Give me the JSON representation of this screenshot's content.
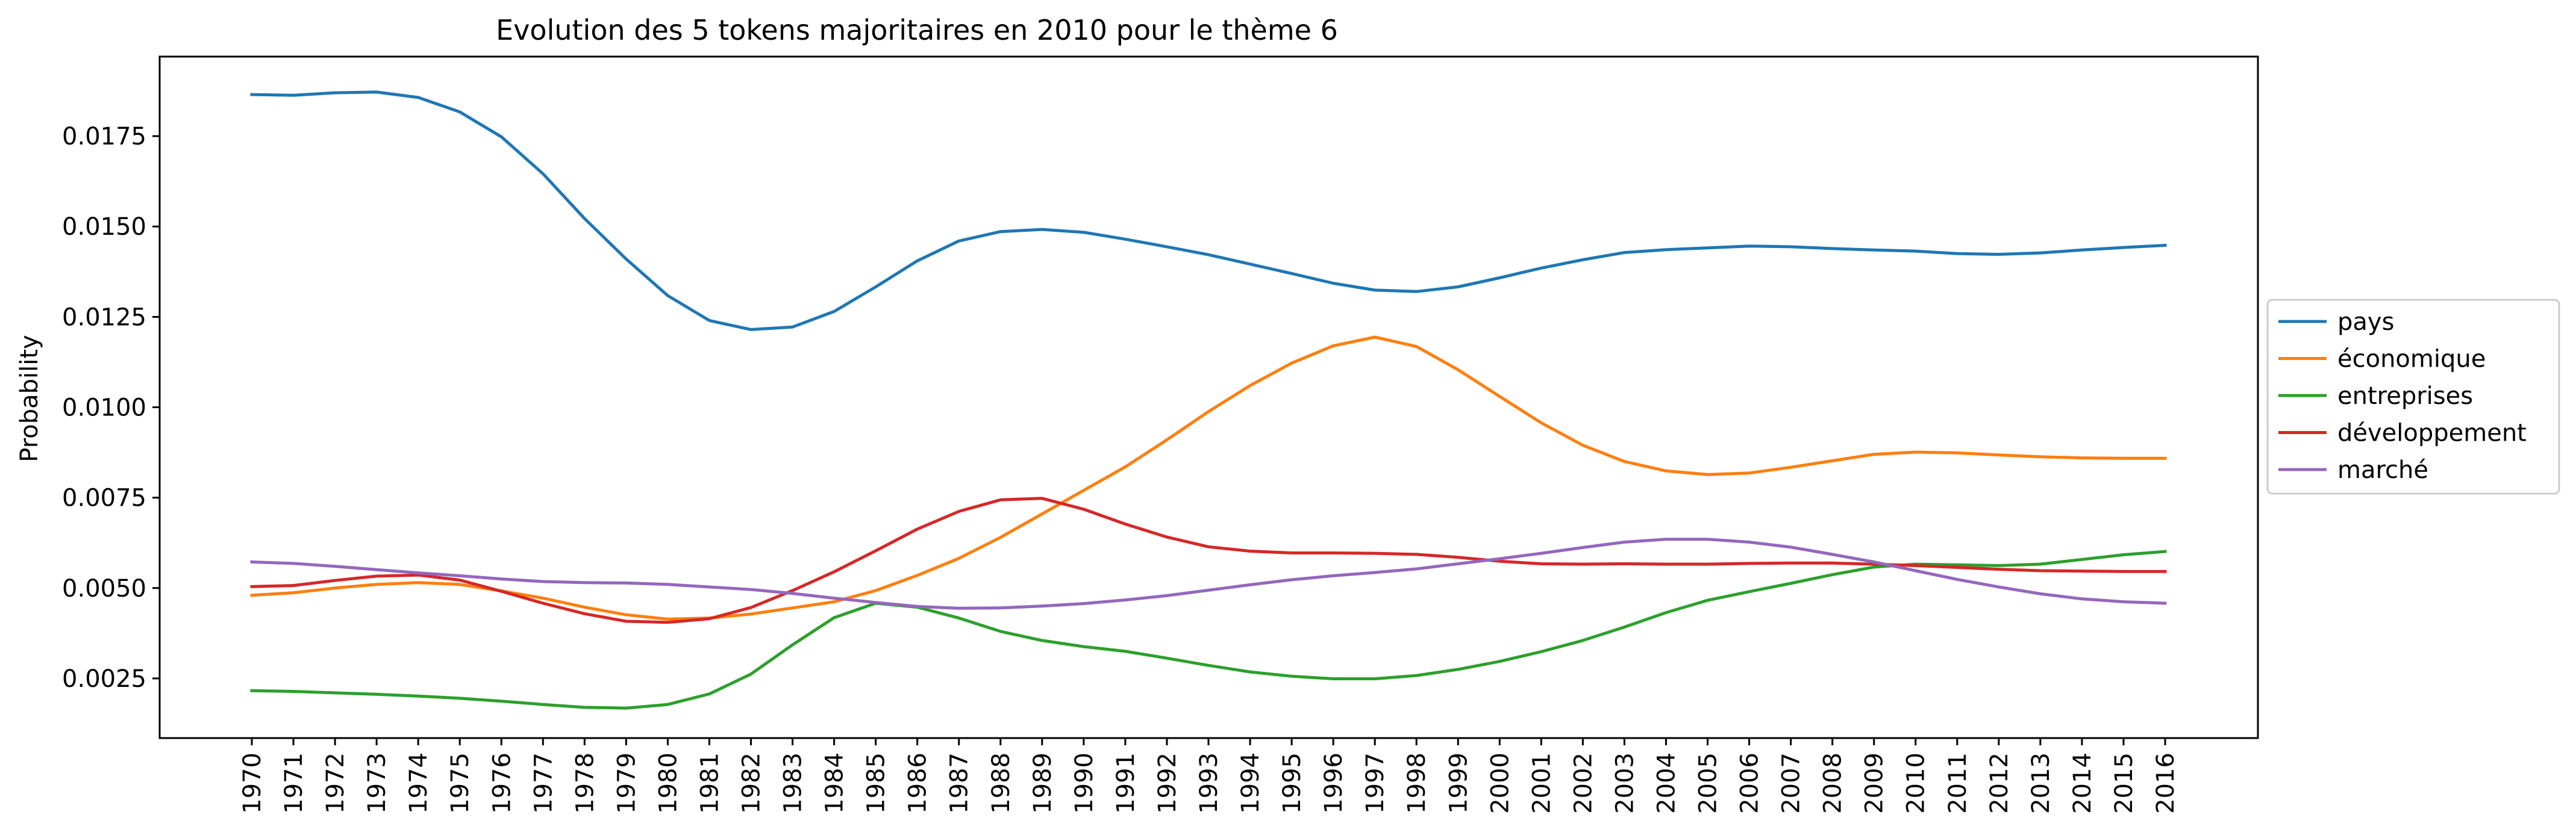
{
  "chart_data": {
    "type": "line",
    "title": "Evolution des 5 tokens majoritaires en 2010 pour le thème 6",
    "xlabel": "",
    "ylabel": "Probability",
    "ylim": [
      0.00085,
      0.0197
    ],
    "yticks": [
      "0.0025",
      "0.0050",
      "0.0075",
      "0.0100",
      "0.0125",
      "0.0150",
      "0.0175"
    ],
    "ytick_values": [
      0.0025,
      0.005,
      0.0075,
      0.01,
      0.0125,
      0.015,
      0.0175
    ],
    "grid": false,
    "legend_position": "center-right (outside)",
    "x": [
      "1970",
      "1971",
      "1972",
      "1973",
      "1974",
      "1975",
      "1976",
      "1977",
      "1978",
      "1979",
      "1980",
      "1981",
      "1982",
      "1983",
      "1984",
      "1985",
      "1986",
      "1987",
      "1988",
      "1989",
      "1990",
      "1991",
      "1992",
      "1993",
      "1994",
      "1995",
      "1996",
      "1997",
      "1998",
      "1999",
      "2000",
      "2001",
      "2002",
      "2003",
      "2004",
      "2005",
      "2006",
      "2007",
      "2008",
      "2009",
      "2010",
      "2011",
      "2012",
      "2013",
      "2014",
      "2015",
      "2016"
    ],
    "series": [
      {
        "name": "pays",
        "color": "#1f77b4",
        "values": [
          0.01865,
          0.01863,
          0.0187,
          0.01872,
          0.01857,
          0.01817,
          0.01748,
          0.01646,
          0.01522,
          0.0141,
          0.01309,
          0.0124,
          0.01215,
          0.01222,
          0.01265,
          0.01333,
          0.01405,
          0.0146,
          0.01486,
          0.01492,
          0.01484,
          0.01465,
          0.01444,
          0.01422,
          0.01396,
          0.0137,
          0.01343,
          0.01324,
          0.0132,
          0.01333,
          0.01358,
          0.01385,
          0.01408,
          0.01428,
          0.01436,
          0.01441,
          0.01446,
          0.01444,
          0.01439,
          0.01435,
          0.01432,
          0.01425,
          0.01423,
          0.01427,
          0.01435,
          0.01442,
          0.01448
        ]
      },
      {
        "name": "économique",
        "color": "#ff7f0e",
        "values": [
          0.0048,
          0.00487,
          0.005,
          0.0051,
          0.00515,
          0.0051,
          0.00492,
          0.00472,
          0.00447,
          0.00426,
          0.00414,
          0.00417,
          0.00428,
          0.00445,
          0.00462,
          0.00493,
          0.00535,
          0.00582,
          0.0064,
          0.00705,
          0.0077,
          0.00835,
          0.0091,
          0.00988,
          0.0106,
          0.01122,
          0.0117,
          0.01194,
          0.01168,
          0.01104,
          0.0103,
          0.00957,
          0.00895,
          0.0085,
          0.00824,
          0.00814,
          0.00818,
          0.00834,
          0.00852,
          0.0087,
          0.00876,
          0.00874,
          0.00868,
          0.00863,
          0.0086,
          0.00859,
          0.00859
        ]
      },
      {
        "name": "entreprises",
        "color": "#2ca02c",
        "values": [
          0.00216,
          0.00214,
          0.0021,
          0.00206,
          0.00201,
          0.00195,
          0.00187,
          0.00178,
          0.0017,
          0.00168,
          0.00178,
          0.00207,
          0.00262,
          0.00343,
          0.00418,
          0.00458,
          0.00447,
          0.00417,
          0.0038,
          0.00355,
          0.00338,
          0.00325,
          0.00306,
          0.00286,
          0.00268,
          0.00256,
          0.00249,
          0.00249,
          0.00258,
          0.00275,
          0.00297,
          0.00324,
          0.00355,
          0.00392,
          0.00432,
          0.00466,
          0.0049,
          0.00513,
          0.00537,
          0.00558,
          0.00566,
          0.00564,
          0.00562,
          0.00566,
          0.00579,
          0.00592,
          0.00601
        ]
      },
      {
        "name": "développement",
        "color": "#d62728",
        "values": [
          0.00504,
          0.00507,
          0.00521,
          0.00533,
          0.00536,
          0.00522,
          0.00491,
          0.00458,
          0.00429,
          0.00408,
          0.00405,
          0.00415,
          0.00446,
          0.00493,
          0.00545,
          0.00603,
          0.00663,
          0.00712,
          0.00744,
          0.00748,
          0.00718,
          0.00677,
          0.00641,
          0.00614,
          0.00602,
          0.00597,
          0.00597,
          0.00596,
          0.00593,
          0.00585,
          0.00574,
          0.00567,
          0.00566,
          0.00567,
          0.00566,
          0.00566,
          0.00568,
          0.00569,
          0.00569,
          0.00566,
          0.00562,
          0.00557,
          0.00552,
          0.00548,
          0.00547,
          0.00546,
          0.00546
        ]
      },
      {
        "name": "marché",
        "color": "#9467bd",
        "values": [
          0.00572,
          0.00568,
          0.0056,
          0.00551,
          0.00542,
          0.00534,
          0.00525,
          0.00518,
          0.00515,
          0.00514,
          0.0051,
          0.00503,
          0.00496,
          0.00485,
          0.00472,
          0.0046,
          0.00449,
          0.00444,
          0.00445,
          0.0045,
          0.00457,
          0.00467,
          0.00479,
          0.00494,
          0.00509,
          0.00523,
          0.00534,
          0.00543,
          0.00553,
          0.00567,
          0.00581,
          0.00596,
          0.00612,
          0.00627,
          0.00635,
          0.00635,
          0.00627,
          0.00613,
          0.00593,
          0.00572,
          0.00548,
          0.00524,
          0.00503,
          0.00484,
          0.0047,
          0.00462,
          0.00458
        ]
      }
    ]
  }
}
